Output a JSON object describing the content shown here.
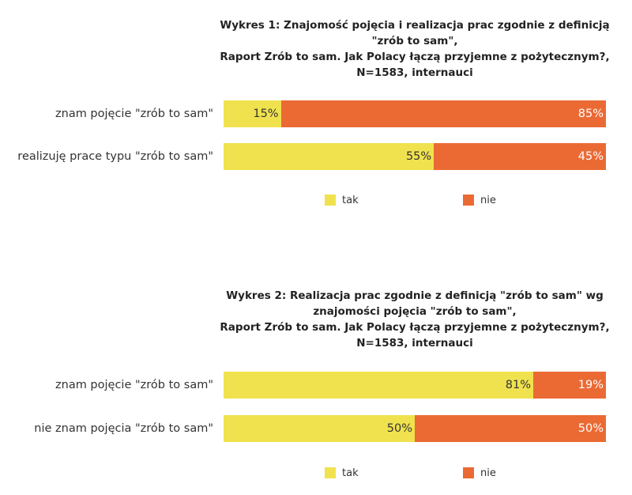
{
  "colors": {
    "tak": "#f0e24e",
    "nie": "#eb6a34"
  },
  "chart_data": [
    {
      "type": "bar",
      "orientation": "horizontal",
      "stacked": true,
      "title_lines": [
        "Wykres 1: Znajomość pojęcia i realizacja prac zgodnie z definicją",
        "\"zrób to sam\",",
        "Raport Zrób to sam. Jak Polacy łączą przyjemne z pożytecznym?,",
        "N=1583, internauci"
      ],
      "categories": [
        "znam pojęcie  \"zrób to sam\"",
        "realizuję prace typu \"zrób to sam\""
      ],
      "series": [
        {
          "name": "tak",
          "values": [
            15,
            55
          ],
          "labels": [
            "15%",
            "55%"
          ]
        },
        {
          "name": "nie",
          "values": [
            85,
            45
          ],
          "labels": [
            "85%",
            "45%"
          ]
        }
      ],
      "xlim": [
        0,
        100
      ],
      "unit": "%",
      "grid": false,
      "legend": "bottom"
    },
    {
      "type": "bar",
      "orientation": "horizontal",
      "stacked": true,
      "title_lines": [
        "Wykres 2: Realizacja prac zgodnie z definicją \"zrób to sam\" wg",
        "znajomości pojęcia \"zrób to sam\",",
        "Raport Zrób to sam. Jak Polacy łączą przyjemne z pożytecznym?,",
        "N=1583, internauci"
      ],
      "categories": [
        "znam pojęcie  \"zrób to sam\"",
        "nie znam pojęcia \"zrób to sam\""
      ],
      "series": [
        {
          "name": "tak",
          "values": [
            81,
            50
          ],
          "labels": [
            "81%",
            "50%"
          ]
        },
        {
          "name": "nie",
          "values": [
            19,
            50
          ],
          "labels": [
            "19%",
            "50%"
          ]
        }
      ],
      "xlim": [
        0,
        100
      ],
      "unit": "%",
      "grid": false,
      "legend": "bottom"
    }
  ]
}
